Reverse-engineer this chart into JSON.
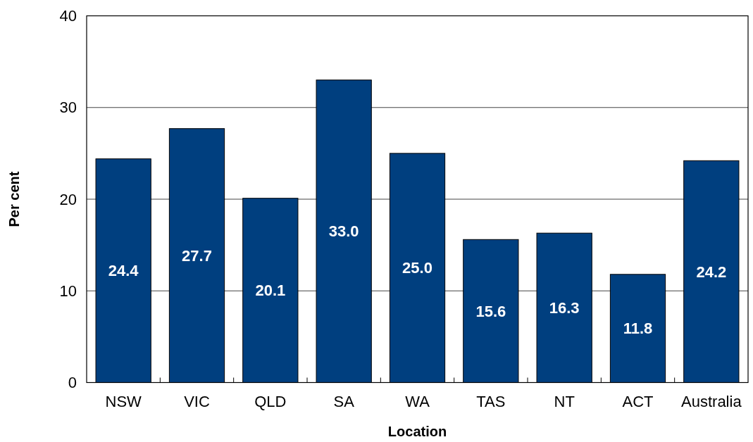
{
  "chart_data": {
    "type": "bar",
    "xlabel": "Location",
    "ylabel": "Per cent",
    "categories": [
      "NSW",
      "VIC",
      "QLD",
      "SA",
      "WA",
      "TAS",
      "NT",
      "ACT",
      "Australia"
    ],
    "values": [
      24.4,
      27.7,
      20.1,
      33.0,
      25.0,
      15.6,
      16.3,
      11.8,
      24.2
    ],
    "value_labels": [
      "24.4",
      "27.7",
      "20.1",
      "33.0",
      "25.0",
      "15.6",
      "16.3",
      "11.8",
      "24.2"
    ],
    "color": "#003f7f",
    "ylim": [
      0,
      40
    ],
    "yticks": [
      0,
      10,
      20,
      30,
      40
    ],
    "grid": "y"
  }
}
